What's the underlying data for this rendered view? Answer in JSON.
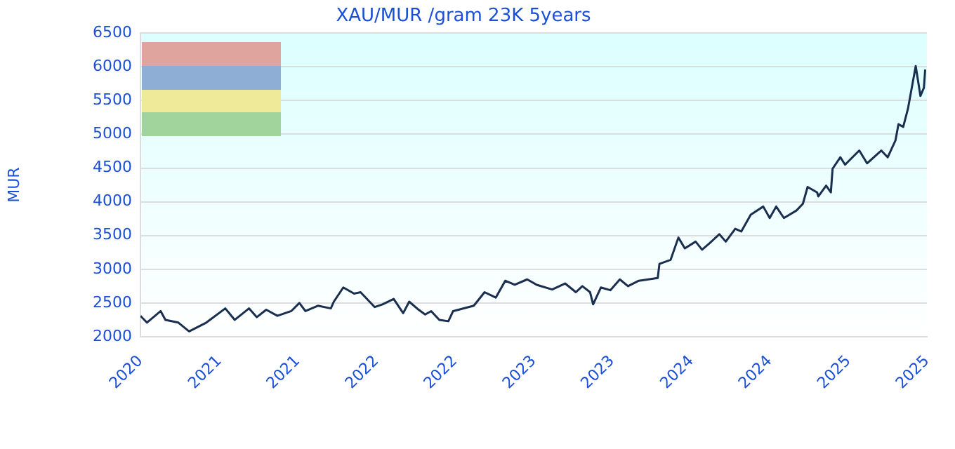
{
  "chart_data": {
    "type": "line",
    "title": "XAU/MUR /gram 23K 5years",
    "ylabel": "MUR",
    "xlim": [
      "2020-10-20",
      "2025-10-20"
    ],
    "xticks": [
      {
        "value": "2020-10-20",
        "label": "2020"
      },
      {
        "value": "2021-04-21",
        "label": "2021"
      },
      {
        "value": "2021-10-20",
        "label": "2021"
      },
      {
        "value": "2022-04-21",
        "label": "2022"
      },
      {
        "value": "2022-10-20",
        "label": "2022"
      },
      {
        "value": "2023-04-21",
        "label": "2023"
      },
      {
        "value": "2023-10-20",
        "label": "2023"
      },
      {
        "value": "2024-04-21",
        "label": "2024"
      },
      {
        "value": "2024-10-20",
        "label": "2024"
      },
      {
        "value": "2025-04-21",
        "label": "2025"
      },
      {
        "value": "2025-10-20",
        "label": "2025"
      }
    ],
    "ylim": [
      2000,
      6500
    ],
    "yticks": [
      2000,
      2500,
      3000,
      3500,
      4000,
      4500,
      5000,
      5500,
      6000,
      6500
    ],
    "grid": "y",
    "legend": false,
    "marker": "none",
    "line_style": "solid",
    "series": [
      {
        "color": "#1a2e50",
        "x": [
          "2020-10-20",
          "2020-11-04",
          "2020-12-06",
          "2020-12-17",
          "2021-01-16",
          "2021-02-10",
          "2021-03-22",
          "2021-05-05",
          "2021-05-27",
          "2021-06-29",
          "2021-07-17",
          "2021-08-08",
          "2021-09-03",
          "2021-10-05",
          "2021-10-24",
          "2021-11-07",
          "2021-12-06",
          "2022-01-05",
          "2022-01-12",
          "2022-02-03",
          "2022-02-28",
          "2022-03-15",
          "2022-04-17",
          "2022-05-05",
          "2022-05-31",
          "2022-06-22",
          "2022-07-06",
          "2022-07-28",
          "2022-08-12",
          "2022-08-26",
          "2022-09-14",
          "2022-10-05",
          "2022-10-16",
          "2022-12-03",
          "2022-12-28",
          "2023-01-23",
          "2023-02-14",
          "2023-03-08",
          "2023-04-06",
          "2023-04-28",
          "2023-06-03",
          "2023-07-03",
          "2023-07-28",
          "2023-08-12",
          "2023-08-30",
          "2023-09-06",
          "2023-09-24",
          "2023-10-16",
          "2023-11-07",
          "2023-11-26",
          "2023-12-21",
          "2024-02-03",
          "2024-02-07",
          "2024-03-04",
          "2024-03-22",
          "2024-04-06",
          "2024-05-01",
          "2024-05-16",
          "2024-06-03",
          "2024-06-25",
          "2024-07-10",
          "2024-08-01",
          "2024-08-15",
          "2024-09-06",
          "2024-10-05",
          "2024-10-20",
          "2024-11-04",
          "2024-11-22",
          "2024-12-21",
          "2025-01-05",
          "2025-01-16",
          "2025-02-07",
          "2025-02-10",
          "2025-02-28",
          "2025-03-11",
          "2025-03-15",
          "2025-04-02",
          "2025-04-13",
          "2025-05-16",
          "2025-06-03",
          "2025-07-06",
          "2025-07-21",
          "2025-08-08",
          "2025-08-15",
          "2025-08-26",
          "2025-09-06",
          "2025-09-24",
          "2025-10-05",
          "2025-10-13",
          "2025-10-16"
        ],
        "values": [
          2310,
          2210,
          2380,
          2250,
          2210,
          2080,
          2210,
          2420,
          2250,
          2420,
          2290,
          2400,
          2310,
          2380,
          2500,
          2380,
          2460,
          2420,
          2520,
          2730,
          2640,
          2660,
          2440,
          2480,
          2560,
          2350,
          2520,
          2400,
          2330,
          2380,
          2250,
          2230,
          2380,
          2460,
          2660,
          2580,
          2830,
          2770,
          2850,
          2770,
          2700,
          2790,
          2660,
          2750,
          2660,
          2480,
          2730,
          2690,
          2850,
          2750,
          2830,
          2870,
          3080,
          3140,
          3470,
          3310,
          3410,
          3290,
          3390,
          3520,
          3410,
          3600,
          3560,
          3810,
          3930,
          3760,
          3930,
          3760,
          3870,
          3970,
          4220,
          4140,
          4080,
          4240,
          4140,
          4490,
          4660,
          4550,
          4760,
          4570,
          4760,
          4660,
          4910,
          5150,
          5110,
          5380,
          6010,
          5570,
          5690,
          5960
        ]
      }
    ]
  }
}
